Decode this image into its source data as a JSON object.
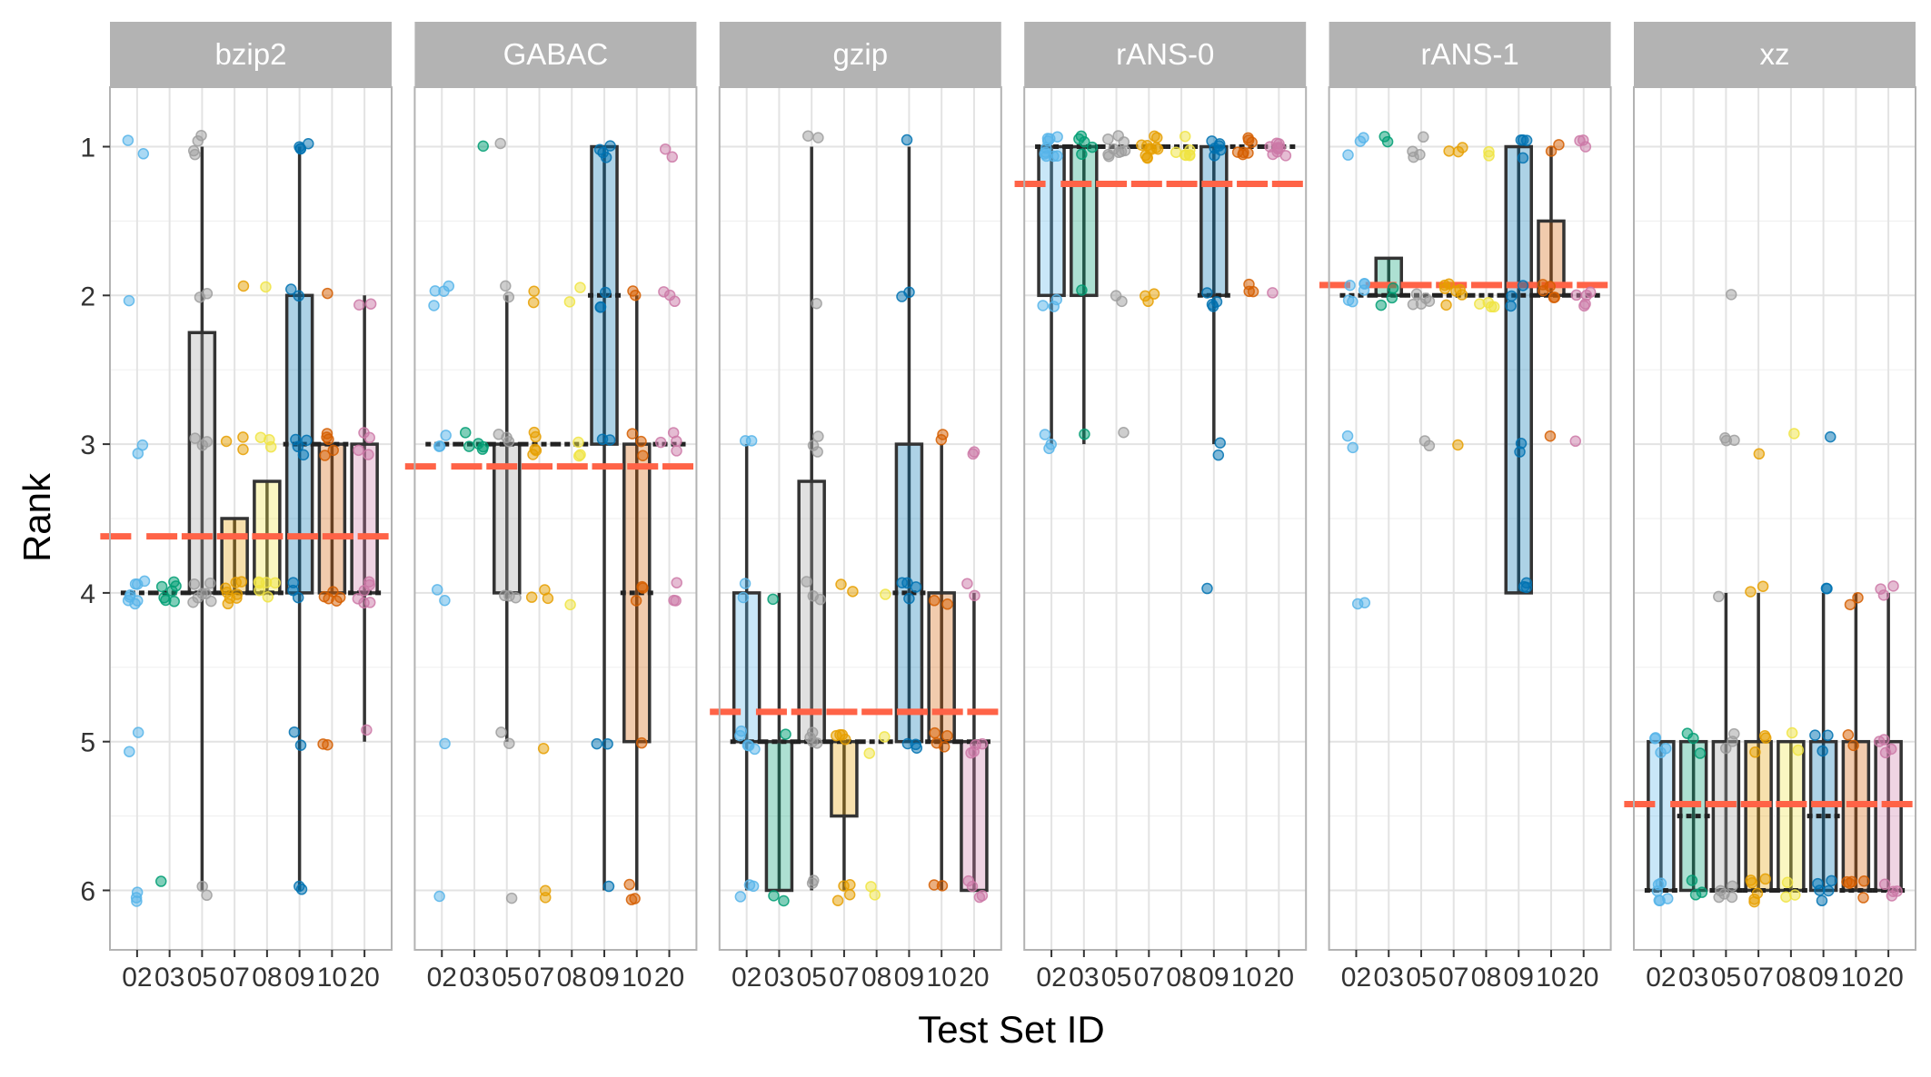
{
  "chart_data": {
    "type": "boxplot",
    "title": "",
    "xlabel": "Test Set ID",
    "ylabel": "Rank",
    "ylim": [
      0.6,
      6.4
    ],
    "y_reversed": true,
    "y_ticks": [
      1,
      2,
      3,
      4,
      5,
      6
    ],
    "categories": [
      "02",
      "03",
      "05",
      "07",
      "08",
      "09",
      "10",
      "20"
    ],
    "category_colors": [
      "#56B4E9",
      "#009E73",
      "#9E9E9E",
      "#E69F00",
      "#F0E442",
      "#0072B2",
      "#D55E00",
      "#CC79A7"
    ],
    "mean_line_color": "#FF6347",
    "grid": true,
    "legend": "none",
    "facets": [
      {
        "label": "bzip2",
        "mean": 3.62,
        "boxes": [
          {
            "q1": 4,
            "median": 4,
            "q3": 4,
            "lo": 4,
            "hi": 4
          },
          {
            "q1": 4,
            "median": 4,
            "q3": 4,
            "lo": 4,
            "hi": 4
          },
          {
            "q1": 2.25,
            "median": 4,
            "q3": 4,
            "lo": 1,
            "hi": 6
          },
          {
            "q1": 3.5,
            "median": 4,
            "q3": 4,
            "lo": 3.5,
            "hi": 4
          },
          {
            "q1": 3.25,
            "median": 4,
            "q3": 4,
            "lo": 3.25,
            "hi": 4
          },
          {
            "q1": 2,
            "median": 3,
            "q3": 4,
            "lo": 1,
            "hi": 6
          },
          {
            "q1": 3,
            "median": 3,
            "q3": 4,
            "lo": 3,
            "hi": 4
          },
          {
            "q1": 3,
            "median": 4,
            "q3": 4,
            "lo": 2,
            "hi": 5
          }
        ],
        "points": [
          [
            1,
            1,
            2,
            3,
            3,
            4,
            4,
            4,
            4,
            4,
            4,
            4,
            4,
            5,
            5,
            6,
            6,
            6
          ],
          [
            4,
            4,
            4,
            4,
            4,
            4,
            4,
            6
          ],
          [
            1,
            1,
            1,
            1,
            2,
            2,
            3,
            3,
            3,
            4,
            4,
            4,
            4,
            4,
            4,
            4,
            6,
            6
          ],
          [
            2,
            3,
            3,
            3,
            4,
            4,
            4,
            4,
            4,
            4,
            4,
            4
          ],
          [
            2,
            3,
            3,
            3,
            4,
            4,
            4,
            4,
            4,
            4
          ],
          [
            1,
            1,
            1,
            1,
            2,
            2,
            3,
            3,
            3,
            3,
            4,
            4,
            4,
            5,
            5,
            6,
            6
          ],
          [
            2,
            3,
            3,
            3,
            3,
            3,
            4,
            4,
            4,
            4,
            4,
            5,
            5
          ],
          [
            2,
            2,
            3,
            3,
            3,
            3,
            4,
            4,
            4,
            4,
            4,
            4,
            5
          ]
        ]
      },
      {
        "label": "GABAC",
        "mean": 3.15,
        "boxes": [
          {
            "q1": 3,
            "median": 3,
            "q3": 3,
            "lo": 3,
            "hi": 3
          },
          {
            "q1": 3,
            "median": 3,
            "q3": 3,
            "lo": 3,
            "hi": 3
          },
          {
            "q1": 3,
            "median": 3,
            "q3": 4,
            "lo": 2,
            "hi": 5
          },
          {
            "q1": 3,
            "median": 3,
            "q3": 3,
            "lo": 3,
            "hi": 3
          },
          {
            "q1": 3,
            "median": 3,
            "q3": 3,
            "lo": 3,
            "hi": 3
          },
          {
            "q1": 1,
            "median": 2,
            "q3": 3,
            "lo": 1,
            "hi": 6
          },
          {
            "q1": 3,
            "median": 4,
            "q3": 5,
            "lo": 2,
            "hi": 6
          },
          {
            "q1": 3,
            "median": 3,
            "q3": 3,
            "lo": 3,
            "hi": 3
          }
        ],
        "points": [
          [
            2,
            2,
            2,
            2,
            3,
            3,
            3,
            4,
            4,
            5,
            6
          ],
          [
            1,
            3,
            3,
            3,
            3,
            3
          ],
          [
            1,
            2,
            2,
            3,
            3,
            3,
            4,
            4,
            4,
            5,
            5,
            6
          ],
          [
            2,
            2,
            3,
            3,
            3,
            3,
            3,
            4,
            4,
            4,
            5,
            6,
            6
          ],
          [
            2,
            2,
            3,
            3,
            3,
            4
          ],
          [
            1,
            1,
            1,
            1,
            2,
            2,
            2,
            3,
            3,
            5,
            5,
            6
          ],
          [
            2,
            2,
            3,
            3,
            3,
            4,
            4,
            4,
            5,
            6,
            6,
            6
          ],
          [
            1,
            1,
            2,
            2,
            2,
            3,
            3,
            3,
            3,
            4,
            4,
            4
          ]
        ]
      },
      {
        "label": "gzip",
        "mean": 4.8,
        "boxes": [
          {
            "q1": 4,
            "median": 5,
            "q3": 5,
            "lo": 3,
            "hi": 6
          },
          {
            "q1": 5,
            "median": 5,
            "q3": 6,
            "lo": 4,
            "hi": 6
          },
          {
            "q1": 3.25,
            "median": 5,
            "q3": 5,
            "lo": 1,
            "hi": 6
          },
          {
            "q1": 5,
            "median": 5,
            "q3": 5.5,
            "lo": 5,
            "hi": 6
          },
          {
            "q1": 5,
            "median": 5,
            "q3": 5,
            "lo": 5,
            "hi": 5
          },
          {
            "q1": 3,
            "median": 4,
            "q3": 5,
            "lo": 1,
            "hi": 5
          },
          {
            "q1": 4,
            "median": 5,
            "q3": 5,
            "lo": 3,
            "hi": 6
          },
          {
            "q1": 5,
            "median": 5,
            "q3": 6,
            "lo": 4,
            "hi": 6
          }
        ],
        "points": [
          [
            3,
            3,
            4,
            4,
            5,
            5,
            5,
            5,
            5,
            6,
            6,
            6
          ],
          [
            4,
            5,
            6,
            6
          ],
          [
            1,
            1,
            2,
            3,
            3,
            3,
            4,
            4,
            4,
            5,
            5,
            5,
            5,
            6,
            6
          ],
          [
            4,
            4,
            5,
            5,
            5,
            5,
            6,
            6,
            6,
            6
          ],
          [
            4,
            5,
            5,
            6,
            6
          ],
          [
            1,
            2,
            2,
            4,
            4,
            4,
            4,
            5,
            5,
            5
          ],
          [
            3,
            3,
            4,
            4,
            5,
            5,
            5,
            5,
            6,
            6
          ],
          [
            3,
            3,
            4,
            4,
            5,
            5,
            5,
            5,
            6,
            6,
            6,
            6
          ]
        ]
      },
      {
        "label": "rANS-0",
        "mean": 1.25,
        "boxes": [
          {
            "q1": 1,
            "median": 1,
            "q3": 2,
            "lo": 1,
            "hi": 3
          },
          {
            "q1": 1,
            "median": 1,
            "q3": 2,
            "lo": 1,
            "hi": 3
          },
          {
            "q1": 1,
            "median": 1,
            "q3": 1,
            "lo": 1,
            "hi": 1
          },
          {
            "q1": 1,
            "median": 1,
            "q3": 1,
            "lo": 1,
            "hi": 1
          },
          {
            "q1": 1,
            "median": 1,
            "q3": 1,
            "lo": 1,
            "hi": 1
          },
          {
            "q1": 1,
            "median": 2,
            "q3": 2,
            "lo": 1,
            "hi": 3
          },
          {
            "q1": 1,
            "median": 1,
            "q3": 1,
            "lo": 1,
            "hi": 1
          },
          {
            "q1": 1,
            "median": 1,
            "q3": 1,
            "lo": 1,
            "hi": 1
          }
        ],
        "points": [
          [
            1,
            1,
            1,
            1,
            1,
            1,
            1,
            1,
            1,
            1,
            2,
            2,
            2,
            3,
            3,
            3
          ],
          [
            1,
            1,
            1,
            1,
            1,
            2,
            3
          ],
          [
            1,
            1,
            1,
            1,
            1,
            1,
            1,
            1,
            1,
            2,
            2,
            3
          ],
          [
            1,
            1,
            1,
            1,
            1,
            1,
            1,
            1,
            1,
            1,
            1,
            2,
            2,
            2
          ],
          [
            1,
            1,
            1,
            1,
            1,
            1,
            1
          ],
          [
            1,
            1,
            1,
            1,
            1,
            1,
            2,
            2,
            2,
            2,
            3,
            3,
            4
          ],
          [
            1,
            1,
            1,
            1,
            1,
            1,
            1,
            2,
            2,
            2
          ],
          [
            1,
            1,
            1,
            1,
            1,
            1,
            1,
            1,
            1,
            2
          ]
        ]
      },
      {
        "label": "rANS-1",
        "mean": 1.93,
        "boxes": [
          {
            "q1": 2,
            "median": 2,
            "q3": 2,
            "lo": 2,
            "hi": 2
          },
          {
            "q1": 1.75,
            "median": 2,
            "q3": 2,
            "lo": 1.75,
            "hi": 2
          },
          {
            "q1": 2,
            "median": 2,
            "q3": 2,
            "lo": 2,
            "hi": 2
          },
          {
            "q1": 2,
            "median": 2,
            "q3": 2,
            "lo": 2,
            "hi": 2
          },
          {
            "q1": 2,
            "median": 2,
            "q3": 2,
            "lo": 2,
            "hi": 2
          },
          {
            "q1": 1,
            "median": 2,
            "q3": 4,
            "lo": 1,
            "hi": 4
          },
          {
            "q1": 1.5,
            "median": 2,
            "q3": 2,
            "lo": 1,
            "hi": 2
          },
          {
            "q1": 2,
            "median": 2,
            "q3": 2,
            "lo": 2,
            "hi": 2
          }
        ],
        "points": [
          [
            1,
            1,
            1,
            2,
            2,
            2,
            2,
            2,
            2,
            3,
            3,
            4,
            4
          ],
          [
            1,
            1,
            2,
            2,
            2
          ],
          [
            1,
            1,
            1,
            1,
            2,
            2,
            2,
            2,
            2,
            3,
            3
          ],
          [
            1,
            1,
            1,
            2,
            2,
            2,
            2,
            2,
            2,
            2,
            3
          ],
          [
            1,
            1,
            2,
            2,
            2,
            2
          ],
          [
            1,
            1,
            1,
            1,
            2,
            2,
            2,
            3,
            3,
            4,
            4,
            4
          ],
          [
            1,
            1,
            2,
            2,
            2,
            2,
            2,
            3
          ],
          [
            1,
            1,
            1,
            2,
            2,
            2,
            2,
            2,
            3
          ]
        ]
      },
      {
        "label": "xz",
        "mean": 5.42,
        "boxes": [
          {
            "q1": 5,
            "median": 6,
            "q3": 6,
            "lo": 5,
            "hi": 6
          },
          {
            "q1": 5,
            "median": 5.5,
            "q3": 6,
            "lo": 5,
            "hi": 6
          },
          {
            "q1": 5,
            "median": 6,
            "q3": 6,
            "lo": 4,
            "hi": 6
          },
          {
            "q1": 5,
            "median": 6,
            "q3": 6,
            "lo": 4,
            "hi": 6
          },
          {
            "q1": 5,
            "median": 6,
            "q3": 6,
            "lo": 5,
            "hi": 6
          },
          {
            "q1": 5,
            "median": 5.5,
            "q3": 6,
            "lo": 4,
            "hi": 6
          },
          {
            "q1": 5,
            "median": 6,
            "q3": 6,
            "lo": 4,
            "hi": 6
          },
          {
            "q1": 5,
            "median": 6,
            "q3": 6,
            "lo": 4,
            "hi": 6
          }
        ],
        "points": [
          [
            5,
            5,
            5,
            5,
            6,
            6,
            6,
            6,
            6,
            6
          ],
          [
            5,
            5,
            5,
            6,
            6,
            6
          ],
          [
            2,
            3,
            3,
            3,
            4,
            5,
            5,
            5,
            6,
            6,
            6,
            6,
            6
          ],
          [
            3,
            4,
            4,
            5,
            5,
            5,
            6,
            6,
            6,
            6,
            6,
            6
          ],
          [
            3,
            5,
            5,
            6,
            6,
            6
          ],
          [
            3,
            4,
            4,
            5,
            5,
            5,
            6,
            6,
            6,
            6,
            6
          ],
          [
            4,
            4,
            5,
            5,
            6,
            6,
            6,
            6,
            6
          ],
          [
            4,
            4,
            4,
            5,
            5,
            5,
            5,
            6,
            6,
            6,
            6
          ]
        ]
      }
    ]
  }
}
